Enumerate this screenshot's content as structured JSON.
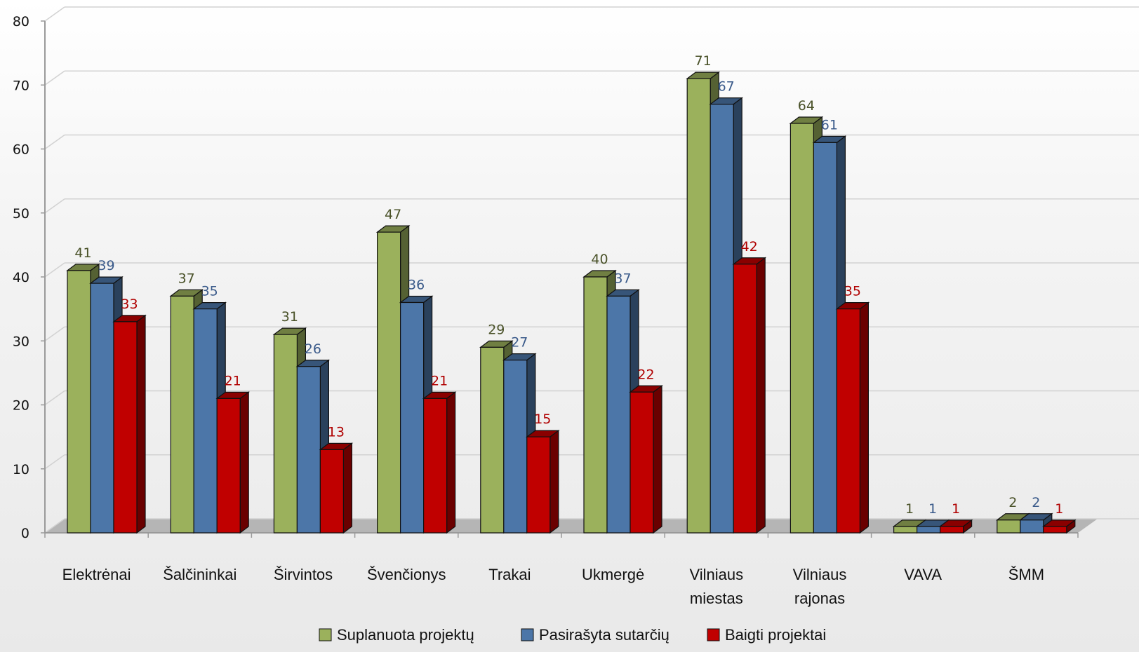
{
  "chart_data": {
    "type": "bar",
    "categories": [
      [
        "Elektrėnai"
      ],
      [
        "Šalčininkai"
      ],
      [
        "Širvintos"
      ],
      [
        "Švenčionys"
      ],
      [
        "Trakai"
      ],
      [
        "Ukmergė"
      ],
      [
        "Vilniaus",
        "miestas"
      ],
      [
        "Vilniaus",
        "rajonas"
      ],
      [
        "VAVA"
      ],
      [
        "ŠMM"
      ]
    ],
    "series": [
      {
        "name": "Suplanuota projektų",
        "values": [
          41,
          37,
          31,
          47,
          29,
          40,
          71,
          64,
          1,
          2
        ],
        "color": "#9bb15c",
        "label_color": "#4a5229"
      },
      {
        "name": "Pasirašyta sutarčių",
        "values": [
          39,
          35,
          26,
          36,
          27,
          37,
          67,
          61,
          1,
          2
        ],
        "color": "#4c76a8",
        "label_color": "#3a5a8a"
      },
      {
        "name": "Baigti projektai",
        "values": [
          33,
          21,
          13,
          21,
          15,
          22,
          42,
          35,
          1,
          1
        ],
        "color": "#c00000",
        "label_color": "#b00000"
      }
    ],
    "ylim": [
      0,
      80
    ],
    "yticks": [
      0,
      10,
      20,
      30,
      40,
      50,
      60,
      70,
      80
    ],
    "xlabel": "",
    "ylabel": "",
    "grid": true,
    "legend_position": "bottom",
    "style": "3d-clustered-column"
  }
}
